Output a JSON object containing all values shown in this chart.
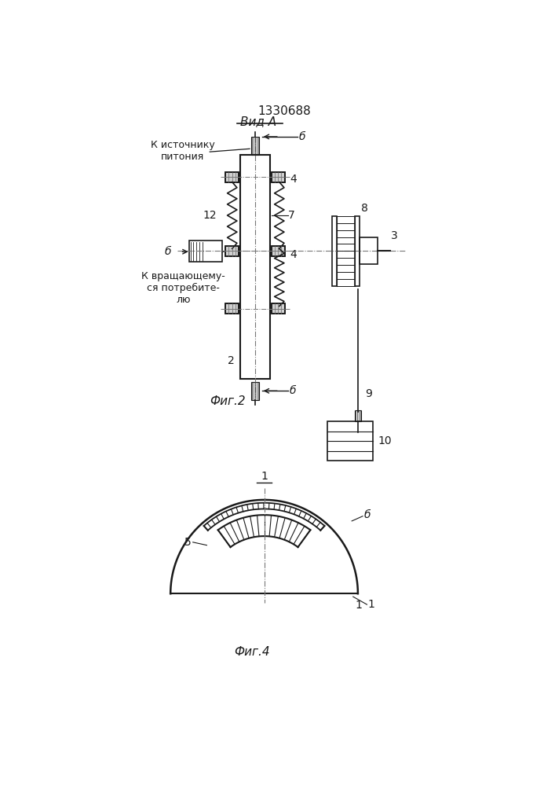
{
  "title": "1330688",
  "view_label": "Вид А",
  "fig2_label": "Фиг.2",
  "fig4_label": "Фиг.4",
  "label_source": "К источнику\nпитония",
  "label_consumer": "К вращающему-\nся потребите-\nлю",
  "bg_color": "#ffffff",
  "line_color": "#1a1a1a",
  "lw": 1.2
}
